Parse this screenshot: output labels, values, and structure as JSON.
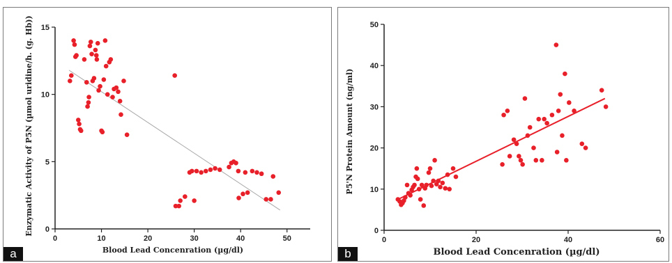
{
  "labels": {
    "a": "a",
    "b": "b"
  },
  "colors": {
    "point": "#e8202a",
    "fit_a": "#a8a8a8",
    "fit_b": "#e8202a",
    "axis": "#222222"
  },
  "chart_data": [
    {
      "panel": "a",
      "type": "scatter",
      "title": "",
      "xlabel": "Blood Lead Concenration (µg/dl)",
      "ylabel": "Enzymatic Activity of P5N (µmol uridine/h. (g. Hb))",
      "xlim": [
        0,
        55
      ],
      "ylim": [
        0,
        15
      ],
      "xticks": [
        "0",
        "10",
        "20",
        "30",
        "40",
        "50"
      ],
      "yticks": [
        "0",
        "5",
        "10",
        "15"
      ],
      "grid": false,
      "fit_line": {
        "x": [
          3,
          48.5
        ],
        "y": [
          11.8,
          1.4
        ]
      },
      "points": [
        [
          3.2,
          11.0
        ],
        [
          3.5,
          11.4
        ],
        [
          4.0,
          14.0
        ],
        [
          4.2,
          13.7
        ],
        [
          4.4,
          12.8
        ],
        [
          4.6,
          12.9
        ],
        [
          5.0,
          8.1
        ],
        [
          5.2,
          7.8
        ],
        [
          5.4,
          7.4
        ],
        [
          5.6,
          7.3
        ],
        [
          6.3,
          12.6
        ],
        [
          6.8,
          10.9
        ],
        [
          7.0,
          9.1
        ],
        [
          7.2,
          9.4
        ],
        [
          7.3,
          9.8
        ],
        [
          7.5,
          13.6
        ],
        [
          7.7,
          13.9
        ],
        [
          7.9,
          13.0
        ],
        [
          8.1,
          11.0
        ],
        [
          8.4,
          11.2
        ],
        [
          8.7,
          13.3
        ],
        [
          8.9,
          12.9
        ],
        [
          9.0,
          12.6
        ],
        [
          9.2,
          13.8
        ],
        [
          9.4,
          10.3
        ],
        [
          9.7,
          10.6
        ],
        [
          10.0,
          7.3
        ],
        [
          10.2,
          7.2
        ],
        [
          10.5,
          11.1
        ],
        [
          10.8,
          14.0
        ],
        [
          11.0,
          12.1
        ],
        [
          11.3,
          10.0
        ],
        [
          11.7,
          12.4
        ],
        [
          12.0,
          12.6
        ],
        [
          12.4,
          9.8
        ],
        [
          12.7,
          10.4
        ],
        [
          13.2,
          10.5
        ],
        [
          13.6,
          10.2
        ],
        [
          14.0,
          9.5
        ],
        [
          14.2,
          8.5
        ],
        [
          14.8,
          11.0
        ],
        [
          15.5,
          7.0
        ],
        [
          25.8,
          11.4
        ],
        [
          26.0,
          1.7
        ],
        [
          26.7,
          1.7
        ],
        [
          27.0,
          2.1
        ],
        [
          28.0,
          2.4
        ],
        [
          29.0,
          4.2
        ],
        [
          29.5,
          4.3
        ],
        [
          30.0,
          2.1
        ],
        [
          30.5,
          4.3
        ],
        [
          31.5,
          4.2
        ],
        [
          32.5,
          4.3
        ],
        [
          33.5,
          4.4
        ],
        [
          34.5,
          4.5
        ],
        [
          35.5,
          4.4
        ],
        [
          37.5,
          4.6
        ],
        [
          38.0,
          4.9
        ],
        [
          38.5,
          5.0
        ],
        [
          39.0,
          4.9
        ],
        [
          39.5,
          4.3
        ],
        [
          39.6,
          2.3
        ],
        [
          40.5,
          2.6
        ],
        [
          41.0,
          4.2
        ],
        [
          41.5,
          2.7
        ],
        [
          42.5,
          4.3
        ],
        [
          43.5,
          4.2
        ],
        [
          44.5,
          4.1
        ],
        [
          45.5,
          2.2
        ],
        [
          46.5,
          2.2
        ],
        [
          47.0,
          3.9
        ],
        [
          48.2,
          2.7
        ]
      ]
    },
    {
      "panel": "b",
      "type": "scatter",
      "title": "",
      "xlabel": "Blood Lead Concenration (µg/dl)",
      "ylabel": "P5'N Protein Amount (ng/ml)",
      "xlim": [
        0,
        60
      ],
      "ylim": [
        0,
        50
      ],
      "xticks": [
        "0",
        "20",
        "40",
        "60"
      ],
      "yticks": [
        "0",
        "10",
        "20",
        "30",
        "40",
        "50"
      ],
      "grid": false,
      "fit_line": {
        "x": [
          3,
          48
        ],
        "y": [
          7.5,
          32
        ]
      },
      "points": [
        [
          3.0,
          7.5
        ],
        [
          3.4,
          7.0
        ],
        [
          3.7,
          6.2
        ],
        [
          4.0,
          6.6
        ],
        [
          4.3,
          7.2
        ],
        [
          4.6,
          8.0
        ],
        [
          5.0,
          11.0
        ],
        [
          5.3,
          9.0
        ],
        [
          5.7,
          8.5
        ],
        [
          6.0,
          9.8
        ],
        [
          6.3,
          10.5
        ],
        [
          6.6,
          11.0
        ],
        [
          6.9,
          13.0
        ],
        [
          7.1,
          15.0
        ],
        [
          7.3,
          12.5
        ],
        [
          7.6,
          10.0
        ],
        [
          7.9,
          7.5
        ],
        [
          8.2,
          11.0
        ],
        [
          8.6,
          6.0
        ],
        [
          8.9,
          10.2
        ],
        [
          9.2,
          11.0
        ],
        [
          9.7,
          14.0
        ],
        [
          10.0,
          15.0
        ],
        [
          10.3,
          10.8
        ],
        [
          10.7,
          12.0
        ],
        [
          11.0,
          17.0
        ],
        [
          11.4,
          11.2
        ],
        [
          11.8,
          12.0
        ],
        [
          12.2,
          10.5
        ],
        [
          12.7,
          11.5
        ],
        [
          13.3,
          10.2
        ],
        [
          13.8,
          13.5
        ],
        [
          14.2,
          10.0
        ],
        [
          15.0,
          15.0
        ],
        [
          15.6,
          13.0
        ],
        [
          25.7,
          16.0
        ],
        [
          26.0,
          28.0
        ],
        [
          26.8,
          29.0
        ],
        [
          27.3,
          18.0
        ],
        [
          28.2,
          22.0
        ],
        [
          28.8,
          21.0
        ],
        [
          29.3,
          18.0
        ],
        [
          29.7,
          17.0
        ],
        [
          30.1,
          16.0
        ],
        [
          30.6,
          32.0
        ],
        [
          31.2,
          23.0
        ],
        [
          31.7,
          25.0
        ],
        [
          32.5,
          20.0
        ],
        [
          33.0,
          17.0
        ],
        [
          33.6,
          27.0
        ],
        [
          34.3,
          17.0
        ],
        [
          34.8,
          27.0
        ],
        [
          35.4,
          26.0
        ],
        [
          36.5,
          28.0
        ],
        [
          37.4,
          45.0
        ],
        [
          37.6,
          19.0
        ],
        [
          37.9,
          29.0
        ],
        [
          38.3,
          33.0
        ],
        [
          38.7,
          23.0
        ],
        [
          39.3,
          38.0
        ],
        [
          39.6,
          17.0
        ],
        [
          40.2,
          31.0
        ],
        [
          41.3,
          29.0
        ],
        [
          43.0,
          21.0
        ],
        [
          43.8,
          20.0
        ],
        [
          47.3,
          34.0
        ],
        [
          48.2,
          30.0
        ]
      ]
    }
  ]
}
